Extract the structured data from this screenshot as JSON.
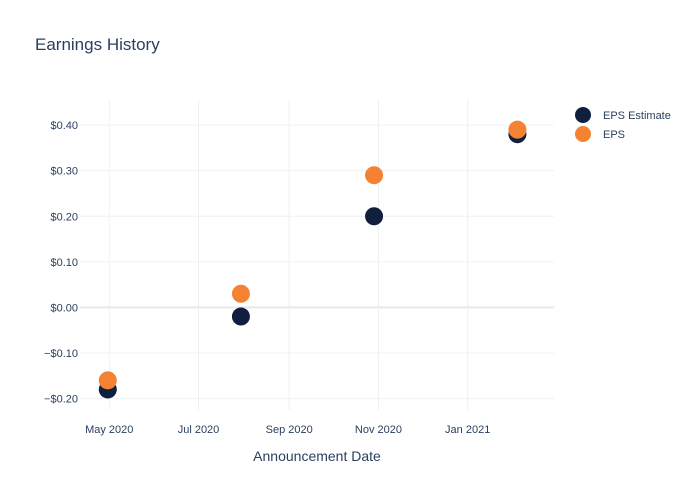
{
  "chart_data": {
    "type": "scatter",
    "title": "Earnings History",
    "xlabel": "Announcement Date",
    "ylabel": "",
    "x_tick_labels": [
      "May 2020",
      "Jul 2020",
      "Sep 2020",
      "Nov 2020",
      "Jan 2021"
    ],
    "x_tick_dates": [
      "2020-05-01",
      "2020-07-01",
      "2020-09-01",
      "2020-11-01",
      "2021-01-01"
    ],
    "y_tick_labels": [
      "$0.40",
      "$0.30",
      "$0.20",
      "$0.10",
      "$0.00",
      "−$0.10",
      "−$0.20"
    ],
    "y_tick_values": [
      0.4,
      0.3,
      0.2,
      0.1,
      0.0,
      -0.1,
      -0.2
    ],
    "xlim": [
      "2020-04-11",
      "2021-03-01"
    ],
    "ylim": [
      -0.225,
      0.455
    ],
    "grid": true,
    "legend_position": "top-right",
    "series": [
      {
        "name": "EPS Estimate",
        "color": "#0f1f3d",
        "points": [
          {
            "x": "2020-04-30",
            "y": -0.18
          },
          {
            "x": "2020-07-30",
            "y": -0.02
          },
          {
            "x": "2020-10-29",
            "y": 0.2
          },
          {
            "x": "2021-02-04",
            "y": 0.38
          }
        ]
      },
      {
        "name": "EPS",
        "color": "#f58232",
        "points": [
          {
            "x": "2020-04-30",
            "y": -0.16
          },
          {
            "x": "2020-07-30",
            "y": 0.03
          },
          {
            "x": "2020-10-29",
            "y": 0.29
          },
          {
            "x": "2021-02-04",
            "y": 0.39
          }
        ]
      }
    ]
  }
}
